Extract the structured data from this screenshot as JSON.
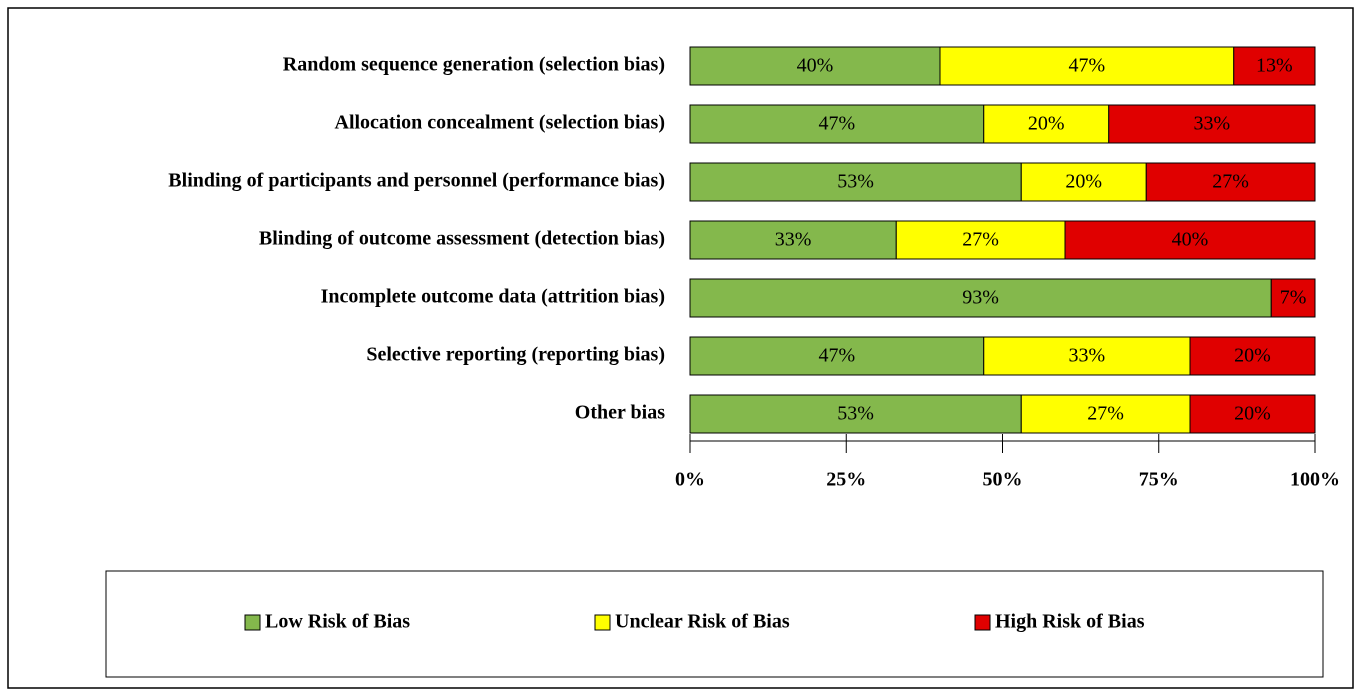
{
  "chart_data": {
    "type": "stacked-bar-horizontal",
    "categories": [
      "Random sequence generation (selection bias)",
      "Allocation concealment (selection bias)",
      "Blinding of participants and personnel (performance bias)",
      "Blinding of outcome assessment (detection bias)",
      "Incomplete outcome data (attrition bias)",
      "Selective reporting (reporting bias)",
      "Other bias"
    ],
    "series": [
      {
        "name": "Low Risk of Bias",
        "color": "#84b84c",
        "values": [
          40,
          47,
          53,
          33,
          93,
          47,
          53
        ],
        "value_labels": [
          "40%",
          "47%",
          "53%",
          "33%",
          "93%",
          "47%",
          "53%"
        ]
      },
      {
        "name": "Unclear Risk of Bias",
        "color": "#ffff00",
        "values": [
          47,
          20,
          20,
          27,
          0,
          33,
          27
        ],
        "value_labels": [
          "47%",
          "20%",
          "20%",
          "27%",
          null,
          "33%",
          "27%"
        ]
      },
      {
        "name": "High Risk of Bias",
        "color": "#e00000",
        "values": [
          13,
          33,
          27,
          40,
          7,
          20,
          20
        ],
        "value_labels": [
          "13%",
          "33%",
          "27%",
          "40%",
          "7%",
          "20%",
          "20%"
        ]
      }
    ],
    "xlim": [
      0,
      100
    ],
    "xticks": [
      {
        "value": 0,
        "label": "0%"
      },
      {
        "value": 25,
        "label": "25%"
      },
      {
        "value": 50,
        "label": "50%"
      },
      {
        "value": 75,
        "label": "75%"
      },
      {
        "value": 100,
        "label": "100%"
      }
    ]
  }
}
